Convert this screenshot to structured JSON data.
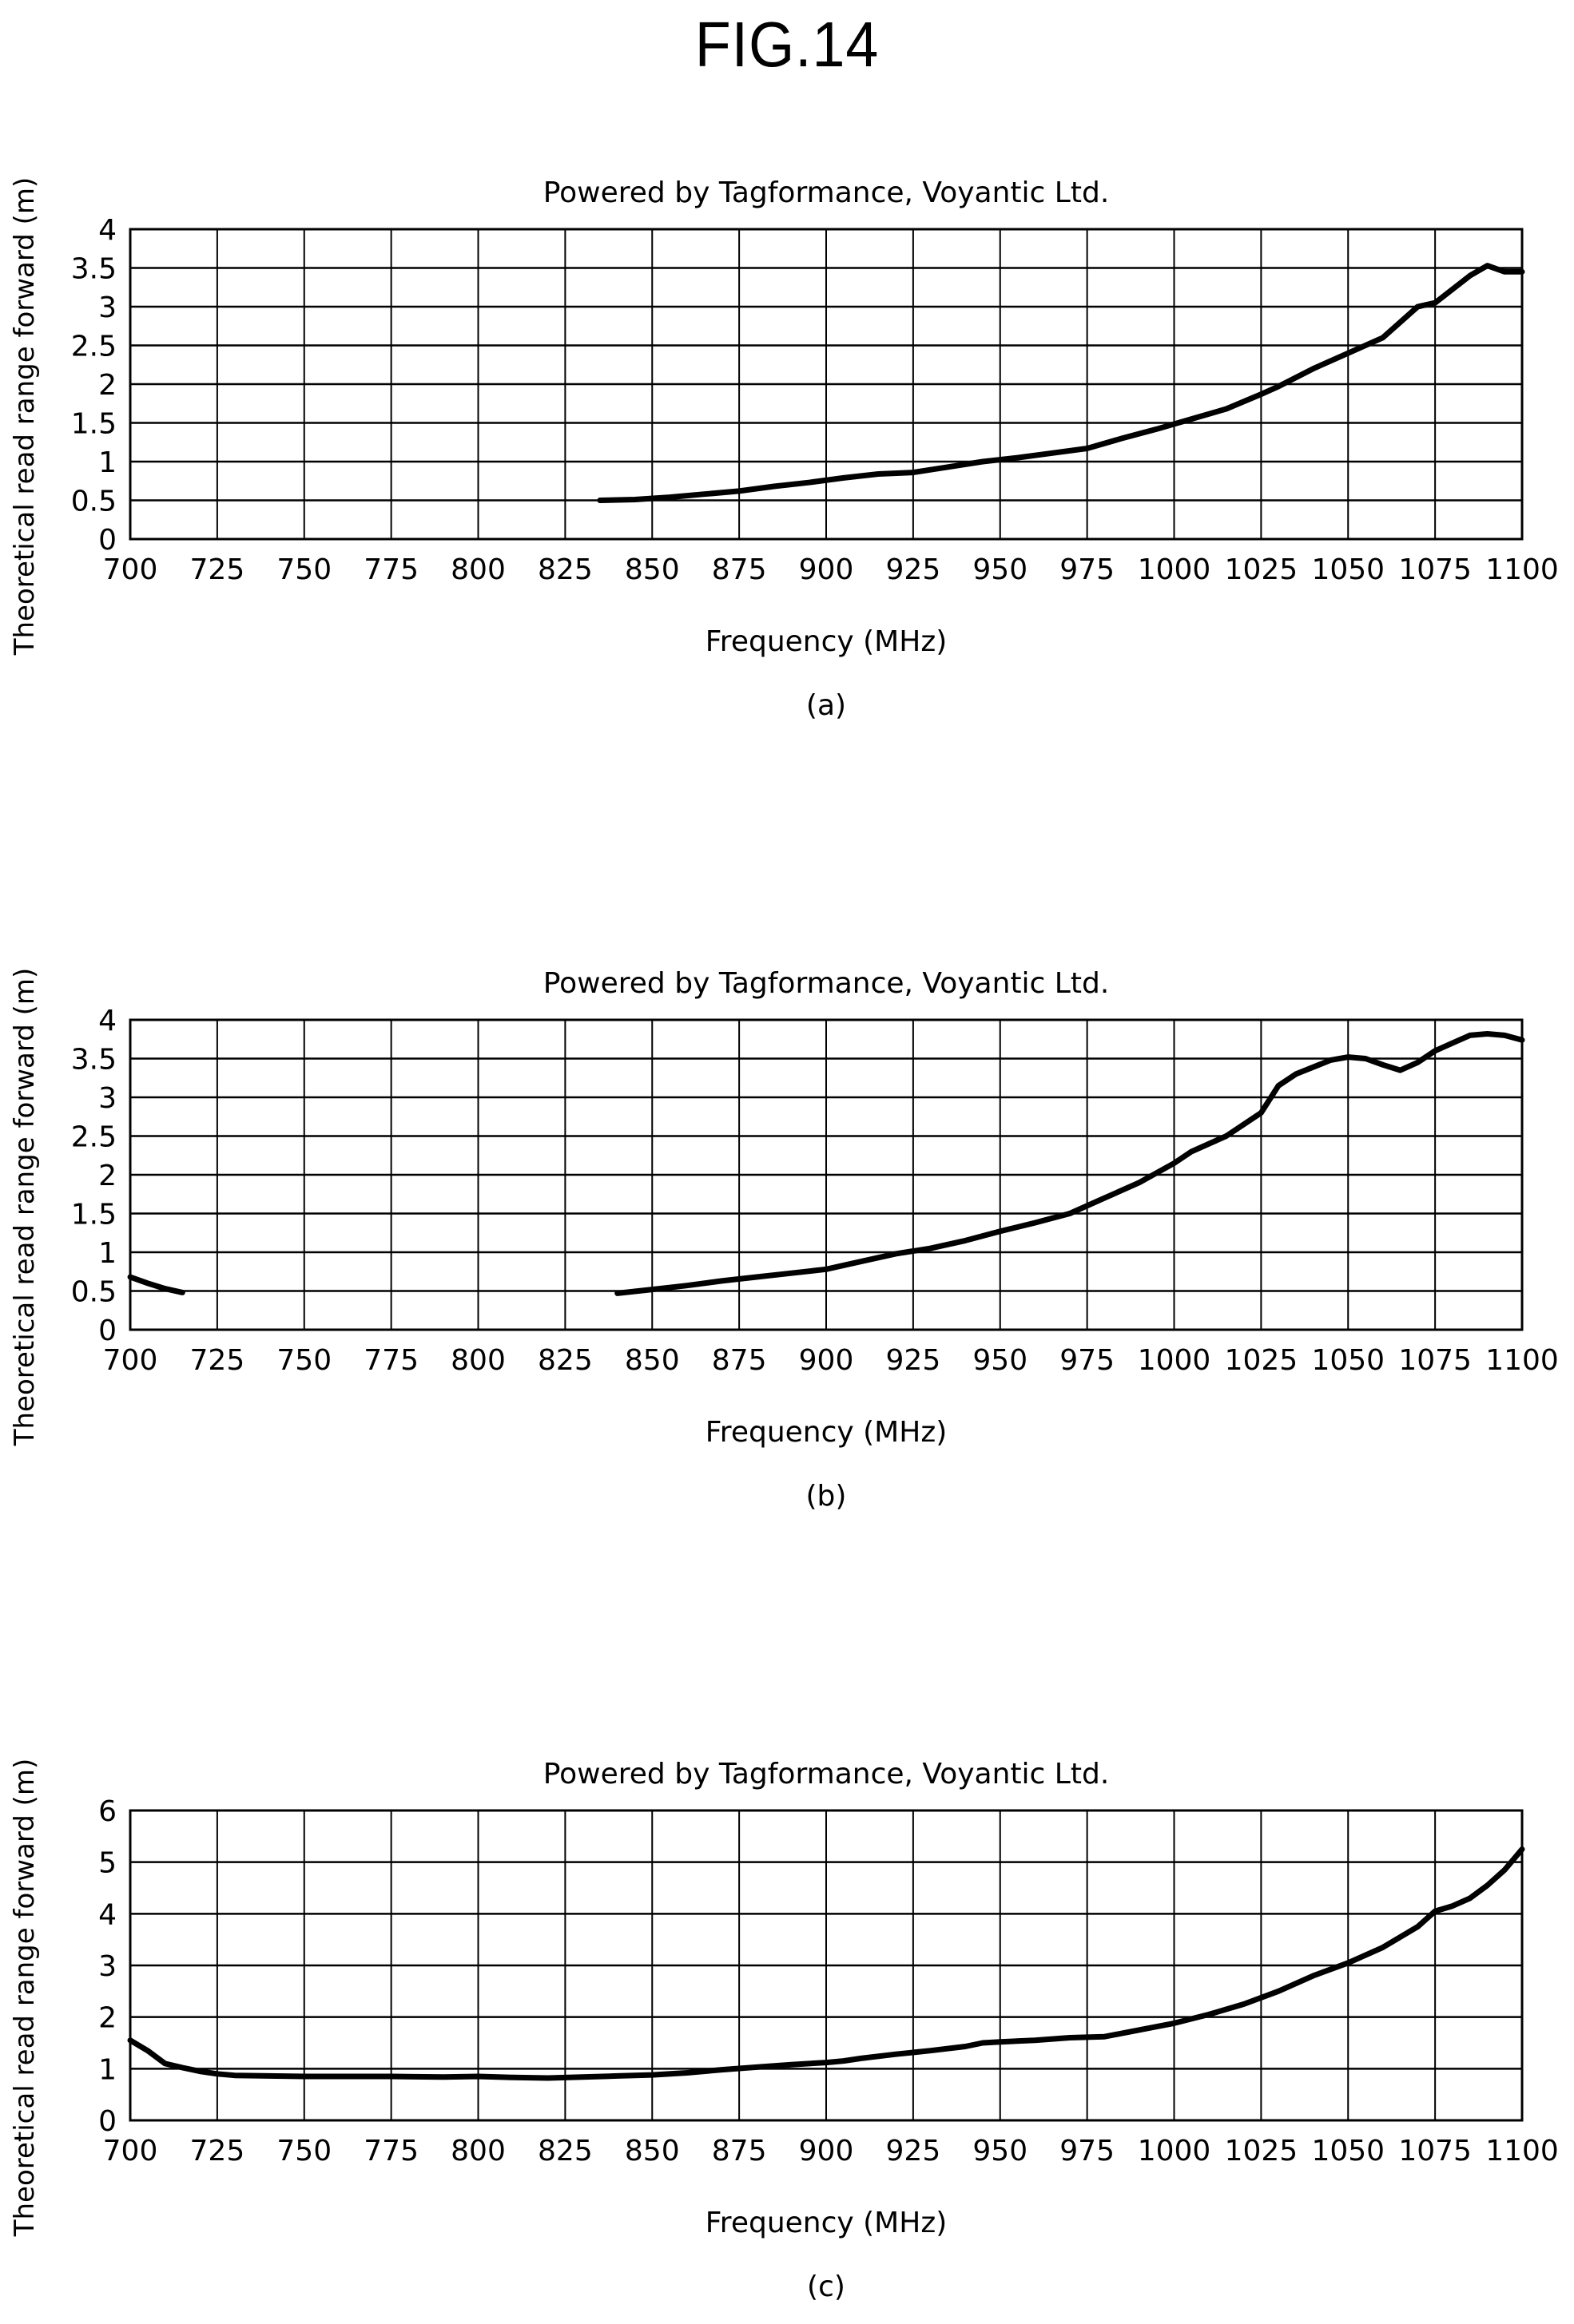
{
  "figure": {
    "title": "FIG.14"
  },
  "chart_data": [
    {
      "type": "line",
      "panel_label": "(a)",
      "title": "Powered by Tagformance, Voyantic Ltd.",
      "xlabel": "Frequency (MHz)",
      "ylabel": "Theoretical read range forward (m)",
      "xlim": [
        700,
        1100
      ],
      "ylim": [
        0,
        4
      ],
      "x_ticks": [
        "700",
        "725",
        "750",
        "775",
        "800",
        "825",
        "850",
        "875",
        "900",
        "925",
        "950",
        "975",
        "1000",
        "1025",
        "1050",
        "1075",
        "1100"
      ],
      "y_ticks": [
        "0",
        "0.5",
        "1",
        "1.5",
        "2",
        "2.5",
        "3",
        "3.5",
        "4"
      ],
      "grid": true,
      "legend": "none",
      "series": [
        {
          "color": "#000000",
          "segments": [
            {
              "x": [
                835,
                845,
                855,
                865,
                875,
                885,
                895,
                905,
                915,
                925,
                935,
                945,
                955,
                965,
                975,
                985,
                995,
                1005,
                1015,
                1025,
                1030,
                1040,
                1050,
                1060,
                1070,
                1075,
                1085,
                1090,
                1095,
                1100
              ],
              "y": [
                0.5,
                0.51,
                0.54,
                0.58,
                0.62,
                0.68,
                0.73,
                0.79,
                0.84,
                0.86,
                0.93,
                1.0,
                1.05,
                1.11,
                1.17,
                1.3,
                1.42,
                1.55,
                1.68,
                1.87,
                1.97,
                2.2,
                2.4,
                2.6,
                3.0,
                3.05,
                3.4,
                3.53,
                3.45,
                3.45
              ]
            }
          ]
        }
      ]
    },
    {
      "type": "line",
      "panel_label": "(b)",
      "title": "Powered by Tagformance, Voyantic Ltd.",
      "xlabel": "Frequency (MHz)",
      "ylabel": "Theoretical read range forward (m)",
      "xlim": [
        700,
        1100
      ],
      "ylim": [
        0,
        4
      ],
      "x_ticks": [
        "700",
        "725",
        "750",
        "775",
        "800",
        "825",
        "850",
        "875",
        "900",
        "925",
        "950",
        "975",
        "1000",
        "1025",
        "1050",
        "1075",
        "1100"
      ],
      "y_ticks": [
        "0",
        "0.5",
        "1",
        "1.5",
        "2",
        "2.5",
        "3",
        "3.5",
        "4"
      ],
      "grid": true,
      "legend": "none",
      "series": [
        {
          "color": "#000000",
          "segments": [
            {
              "x": [
                700,
                705,
                710,
                715
              ],
              "y": [
                0.68,
                0.6,
                0.53,
                0.48
              ]
            },
            {
              "x": [
                840,
                850,
                860,
                870,
                880,
                890,
                900,
                910,
                920,
                930,
                940,
                950,
                960,
                970,
                980,
                990,
                1000,
                1005,
                1015,
                1025,
                1030,
                1035,
                1045,
                1050,
                1055,
                1060,
                1065,
                1070,
                1075,
                1080,
                1085,
                1090,
                1095,
                1100
              ],
              "y": [
                0.47,
                0.52,
                0.57,
                0.63,
                0.68,
                0.73,
                0.78,
                0.88,
                0.98,
                1.05,
                1.15,
                1.27,
                1.38,
                1.5,
                1.7,
                1.9,
                2.15,
                2.3,
                2.5,
                2.8,
                3.15,
                3.3,
                3.48,
                3.52,
                3.5,
                3.42,
                3.35,
                3.45,
                3.6,
                3.7,
                3.8,
                3.82,
                3.8,
                3.74
              ]
            }
          ]
        }
      ]
    },
    {
      "type": "line",
      "panel_label": "(c)",
      "title": "Powered by Tagformance, Voyantic Ltd.",
      "xlabel": "Frequency (MHz)",
      "ylabel": "Theoretical read range forward (m)",
      "xlim": [
        700,
        1100
      ],
      "ylim": [
        0,
        6
      ],
      "x_ticks": [
        "700",
        "725",
        "750",
        "775",
        "800",
        "825",
        "850",
        "875",
        "900",
        "925",
        "950",
        "975",
        "1000",
        "1025",
        "1050",
        "1075",
        "1100"
      ],
      "y_ticks": [
        "0",
        "1",
        "2",
        "3",
        "4",
        "5",
        "6"
      ],
      "grid": true,
      "legend": "none",
      "series": [
        {
          "color": "#000000",
          "segments": [
            {
              "x": [
                700,
                705,
                710,
                715,
                720,
                725,
                730,
                740,
                750,
                760,
                775,
                790,
                800,
                810,
                820,
                830,
                840,
                850,
                860,
                870,
                880,
                890,
                900,
                905,
                910,
                920,
                930,
                940,
                945,
                950,
                960,
                970,
                980,
                990,
                1000,
                1010,
                1020,
                1030,
                1040,
                1050,
                1060,
                1070,
                1075,
                1080,
                1085,
                1090,
                1095,
                1100
              ],
              "y": [
                1.55,
                1.35,
                1.1,
                1.02,
                0.95,
                0.9,
                0.87,
                0.86,
                0.85,
                0.85,
                0.85,
                0.84,
                0.85,
                0.83,
                0.82,
                0.84,
                0.86,
                0.88,
                0.92,
                0.98,
                1.03,
                1.08,
                1.12,
                1.15,
                1.2,
                1.28,
                1.35,
                1.43,
                1.5,
                1.52,
                1.55,
                1.6,
                1.62,
                1.75,
                1.88,
                2.05,
                2.25,
                2.5,
                2.8,
                3.05,
                3.35,
                3.75,
                4.05,
                4.15,
                4.3,
                4.55,
                4.85,
                5.25
              ]
            }
          ]
        }
      ]
    }
  ]
}
